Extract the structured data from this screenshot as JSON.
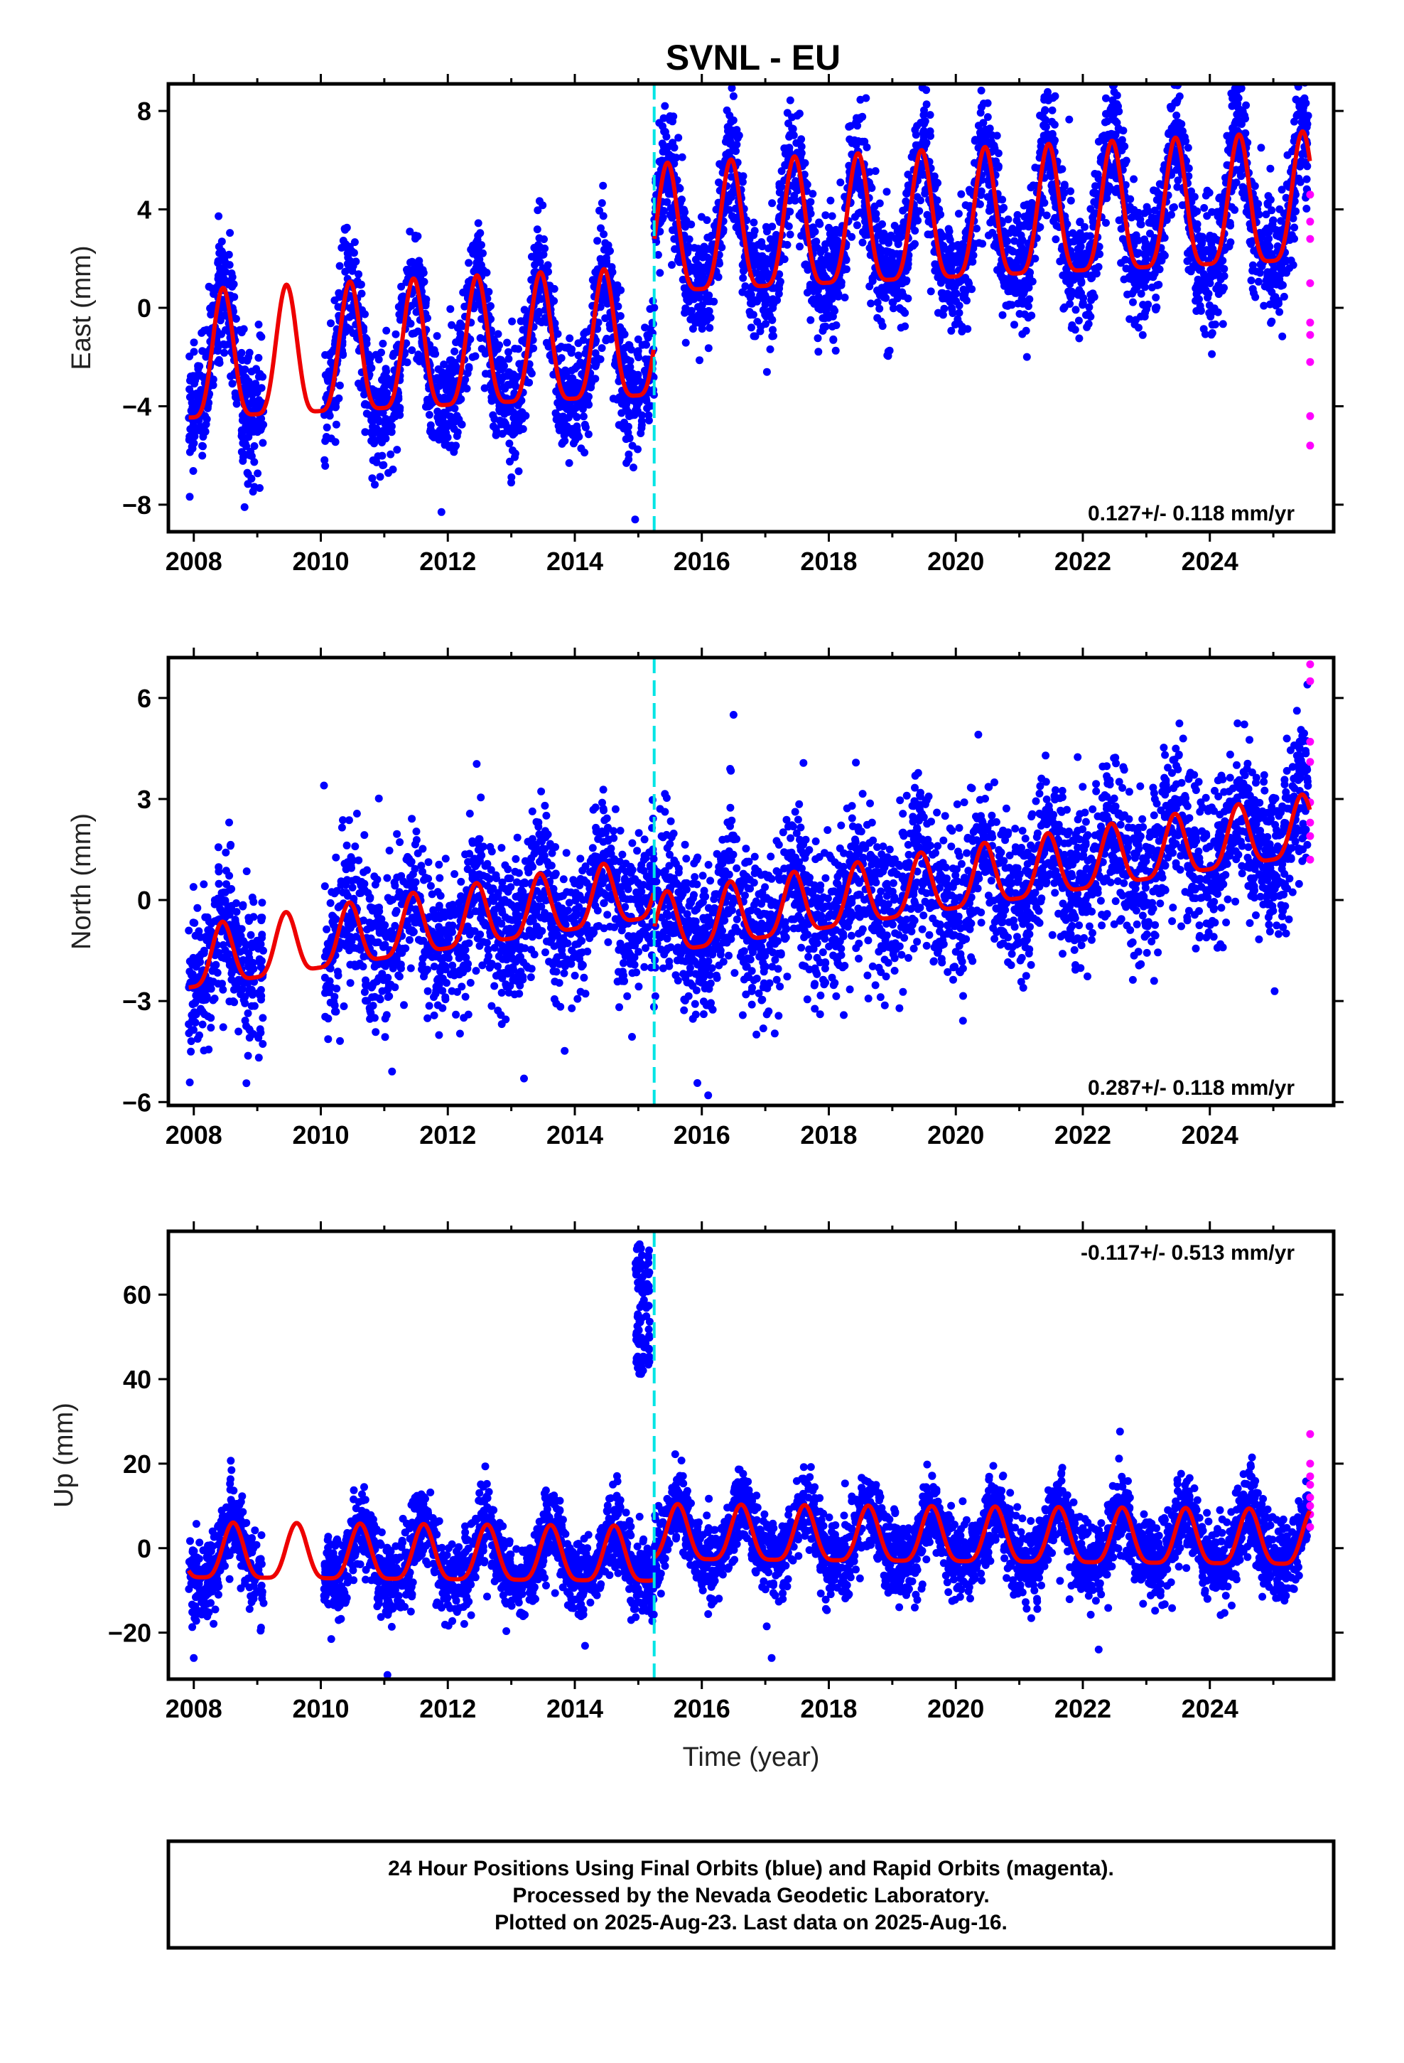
{
  "title": "SVNL - EU",
  "xlabel": "Time (year)",
  "colors": {
    "final": "#0000ff",
    "rapid": "#ff00ff",
    "model": "#ee0000",
    "break": "#00e5e5"
  },
  "x_ticks": [
    "2008",
    "2010",
    "2012",
    "2014",
    "2016",
    "2018",
    "2020",
    "2022",
    "2024"
  ],
  "chart_data": [
    {
      "type": "scatter",
      "name": "east",
      "ylabel": "East (mm)",
      "rate_label": "0.127+/- 0.118 mm/yr",
      "xlim": [
        2007.6,
        2025.95
      ],
      "ylim": [
        -9.1,
        9.1
      ],
      "y_ticks": [
        "8",
        "4",
        "0",
        "−4",
        "−8"
      ],
      "y_tick_values": [
        8,
        4,
        0,
        -4,
        -8
      ],
      "break_year": 2015.25,
      "fit": {
        "rate": 0.127,
        "offsets": [
          [
            2007.9,
            -2.5
          ],
          [
            2015.25,
            1.7
          ]
        ],
        "annual_amp": 2.6,
        "annual_phase": 0.46
      },
      "scatter": {
        "count": 5200,
        "noise": 1.25,
        "seed": 11
      },
      "gap": [
        2009.1,
        2010.05
      ],
      "outliers": [
        [
          2016.5,
          8.6
        ],
        [
          2024.35,
          8.2
        ],
        [
          2014.95,
          -8.6
        ],
        [
          2011.9,
          -8.3
        ],
        [
          2008.8,
          -8.1
        ]
      ],
      "rapid": {
        "x": 2025.58,
        "values": [
          4.6,
          3.5,
          2.8,
          1.0,
          -0.6,
          -1.1,
          -2.2,
          -4.4,
          -5.6
        ]
      }
    },
    {
      "type": "scatter",
      "name": "north",
      "ylabel": "North (mm)",
      "rate_label": "0.287+/- 0.118 mm/yr",
      "xlim": [
        2007.6,
        2025.95
      ],
      "ylim": [
        -6.1,
        7.2
      ],
      "y_ticks": [
        "6",
        "3",
        "0",
        "−3",
        "−6"
      ],
      "y_tick_values": [
        6,
        3,
        0,
        -3,
        -6
      ],
      "break_year": 2015.25,
      "fit": {
        "rate": 0.287,
        "offsets": [
          [
            2007.9,
            -1.9
          ],
          [
            2015.25,
            -3.0
          ]
        ],
        "annual_amp": 0.9,
        "annual_phase": 0.45
      },
      "scatter": {
        "count": 4600,
        "noise": 1.15,
        "seed": 23
      },
      "gap": [
        2009.1,
        2010.05
      ],
      "outliers": [
        [
          2016.5,
          5.5
        ],
        [
          2016.1,
          -5.8
        ],
        [
          2010.05,
          3.4
        ],
        [
          2013.2,
          -5.3
        ]
      ],
      "rapid": {
        "x": 2025.58,
        "values": [
          7.0,
          6.5,
          4.7,
          4.1,
          2.9,
          2.3,
          1.9,
          1.2
        ]
      }
    },
    {
      "type": "scatter",
      "name": "up",
      "ylabel": "Up (mm)",
      "rate_label": "-0.117+/- 0.513 mm/yr",
      "xlim": [
        2007.6,
        2025.95
      ],
      "ylim": [
        -31,
        75
      ],
      "y_ticks": [
        "60",
        "40",
        "20",
        "0",
        "−20"
      ],
      "y_tick_values": [
        60,
        40,
        20,
        0,
        -20
      ],
      "break_year": 2015.25,
      "fit": {
        "rate": -0.117,
        "offsets": [
          [
            2007.9,
            -2.0
          ],
          [
            2015.25,
            3.2
          ]
        ],
        "annual_amp": 6.5,
        "annual_phase": 0.62
      },
      "scatter": {
        "count": 5000,
        "noise": 4.6,
        "seed": 37
      },
      "gap": [
        2009.1,
        2010.05
      ],
      "spike": {
        "x0": 2014.95,
        "x1": 2015.18,
        "y0": 40,
        "y1": 72,
        "count": 90
      },
      "outliers": [
        [
          2011.05,
          -30
        ],
        [
          2017.1,
          -26
        ],
        [
          2022.25,
          -24
        ],
        [
          2008.0,
          -26
        ]
      ],
      "rapid": {
        "x": 2025.58,
        "values": [
          27,
          20,
          17,
          15,
          12,
          10,
          8,
          5
        ]
      }
    }
  ],
  "footer": {
    "line1": "24 Hour Positions Using Final Orbits (blue) and Rapid Orbits (magenta).",
    "line2": "Processed by the Nevada Geodetic Laboratory.",
    "line3": "Plotted on 2025-Aug-23. Last data on 2025-Aug-16."
  }
}
